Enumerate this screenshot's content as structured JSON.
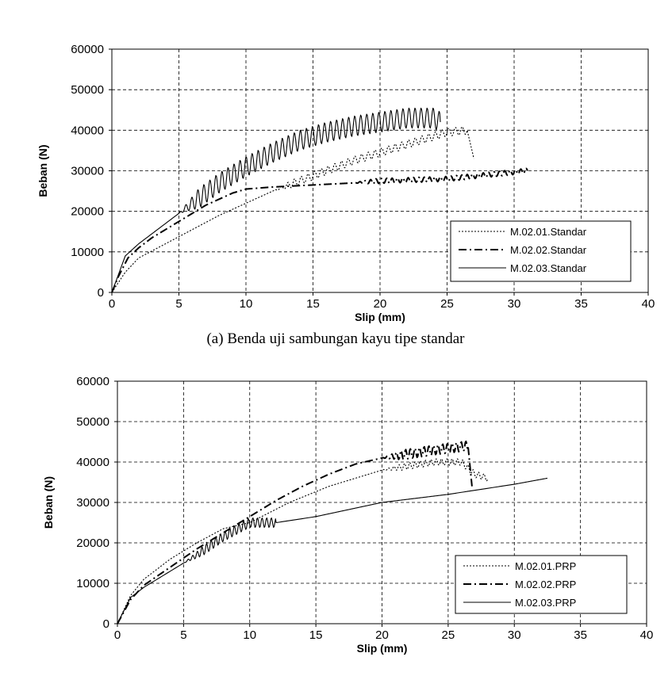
{
  "chart_data": [
    {
      "type": "line",
      "caption": "(a) Benda uji sambungan kayu tipe standar",
      "xlabel": "Slip (mm)",
      "ylabel": "Beban (N)",
      "xlim": [
        0,
        40
      ],
      "ylim": [
        0,
        60000
      ],
      "x_ticks": [
        "0",
        "5",
        "10",
        "15",
        "20",
        "25",
        "30",
        "35",
        "40"
      ],
      "y_ticks": [
        "0",
        "10000",
        "20000",
        "30000",
        "40000",
        "50000",
        "60000"
      ],
      "grid": true,
      "legend_position": "bottom-right",
      "series": [
        {
          "name": "M.02.01.Standar",
          "style": "dotted",
          "points": [
            [
              0,
              0
            ],
            [
              1,
              5000
            ],
            [
              2,
              8500
            ],
            [
              4,
              12000
            ],
            [
              6,
              15500
            ],
            [
              8,
              19000
            ],
            [
              10,
              22000
            ],
            [
              12,
              25000
            ],
            [
              14,
              27500
            ],
            [
              16,
              30000
            ],
            [
              18,
              32500
            ],
            [
              20,
              34500
            ],
            [
              22,
              36500
            ],
            [
              24,
              38500
            ],
            [
              25,
              39500
            ],
            [
              26.5,
              40000
            ],
            [
              27,
              33000
            ]
          ],
          "oscillation": {
            "from": 12,
            "to": 26.5,
            "amplitude": 1000,
            "period": 0.5
          }
        },
        {
          "name": "M.02.02.Standar",
          "style": "dashdot",
          "points": [
            [
              0,
              0
            ],
            [
              0.5,
              4000
            ],
            [
              1.2,
              8500
            ],
            [
              2,
              11000
            ],
            [
              3,
              13500
            ],
            [
              4,
              15500
            ],
            [
              5,
              17500
            ],
            [
              6,
              19500
            ],
            [
              7,
              21500
            ],
            [
              8,
              23000
            ],
            [
              9,
              24500
            ],
            [
              10,
              25500
            ],
            [
              12,
              26000
            ],
            [
              15,
              26500
            ],
            [
              18,
              27000
            ],
            [
              20,
              27500
            ],
            [
              25,
              28000
            ],
            [
              28,
              29000
            ],
            [
              31,
              30000
            ]
          ],
          "oscillation": {
            "from": 18,
            "to": 31,
            "amplitude": 600,
            "period": 0.4
          }
        },
        {
          "name": "M.02.03.Standar",
          "style": "solid",
          "points": [
            [
              0,
              0
            ],
            [
              0.5,
              4500
            ],
            [
              1,
              9000
            ],
            [
              2,
              12000
            ],
            [
              3,
              14500
            ],
            [
              4,
              17000
            ],
            [
              5,
              19500
            ],
            [
              6,
              22000
            ],
            [
              8,
              27000
            ],
            [
              10,
              31000
            ],
            [
              12,
              34500
            ],
            [
              14,
              37500
            ],
            [
              16,
              39500
            ],
            [
              18,
              41000
            ],
            [
              20,
              42000
            ],
            [
              22,
              43000
            ],
            [
              24,
              43000
            ],
            [
              24.5,
              42000
            ]
          ],
          "oscillation": {
            "from": 5,
            "to": 24.5,
            "amplitude": 2500,
            "period": 0.45
          }
        }
      ]
    },
    {
      "type": "line",
      "xlabel": "Slip (mm)",
      "ylabel": "Beban (N)",
      "xlim": [
        0,
        40
      ],
      "ylim": [
        0,
        60000
      ],
      "x_ticks": [
        "0",
        "5",
        "10",
        "15",
        "20",
        "25",
        "30",
        "35",
        "40"
      ],
      "y_ticks": [
        "0",
        "10000",
        "20000",
        "30000",
        "40000",
        "50000",
        "60000"
      ],
      "grid": true,
      "legend_position": "bottom-right",
      "series": [
        {
          "name": "M.02.01.PRP",
          "style": "dotted",
          "points": [
            [
              0,
              0
            ],
            [
              1,
              7000
            ],
            [
              2,
              11000
            ],
            [
              4,
              16000
            ],
            [
              6,
              20000
            ],
            [
              8,
              23500
            ],
            [
              10,
              25000
            ],
            [
              13,
              30000
            ],
            [
              16,
              34000
            ],
            [
              20,
              38000
            ],
            [
              24,
              40000
            ],
            [
              26,
              40000
            ],
            [
              27,
              37000
            ],
            [
              28,
              36000
            ]
          ],
          "oscillation": {
            "from": 20,
            "to": 28,
            "amplitude": 800,
            "period": 0.4
          }
        },
        {
          "name": "M.02.02.PRP",
          "style": "dashdot",
          "points": [
            [
              0,
              0
            ],
            [
              1,
              6000
            ],
            [
              2,
              9500
            ],
            [
              4,
              14000
            ],
            [
              6,
              18500
            ],
            [
              8,
              22500
            ],
            [
              10,
              26500
            ],
            [
              12,
              30500
            ],
            [
              14,
              34000
            ],
            [
              16,
              37000
            ],
            [
              18,
              39500
            ],
            [
              20,
              41000
            ],
            [
              22,
              42000
            ],
            [
              24,
              43000
            ],
            [
              26.5,
              44000
            ],
            [
              26.8,
              34000
            ]
          ],
          "oscillation": {
            "from": 20,
            "to": 26.5,
            "amplitude": 1200,
            "period": 0.35
          }
        },
        {
          "name": "M.02.03.PRP",
          "style": "solid",
          "points": [
            [
              0,
              0
            ],
            [
              1,
              6500
            ],
            [
              2,
              9000
            ],
            [
              4,
              13000
            ],
            [
              6,
              17000
            ],
            [
              8,
              21500
            ],
            [
              10,
              25000
            ],
            [
              12,
              25000
            ],
            [
              15,
              26500
            ],
            [
              20,
              30000
            ],
            [
              25,
              32000
            ],
            [
              30,
              34500
            ],
            [
              32.5,
              36000
            ]
          ],
          "oscillation": {
            "from": 5,
            "to": 12,
            "amplitude": 1200,
            "period": 0.35
          }
        }
      ]
    }
  ]
}
